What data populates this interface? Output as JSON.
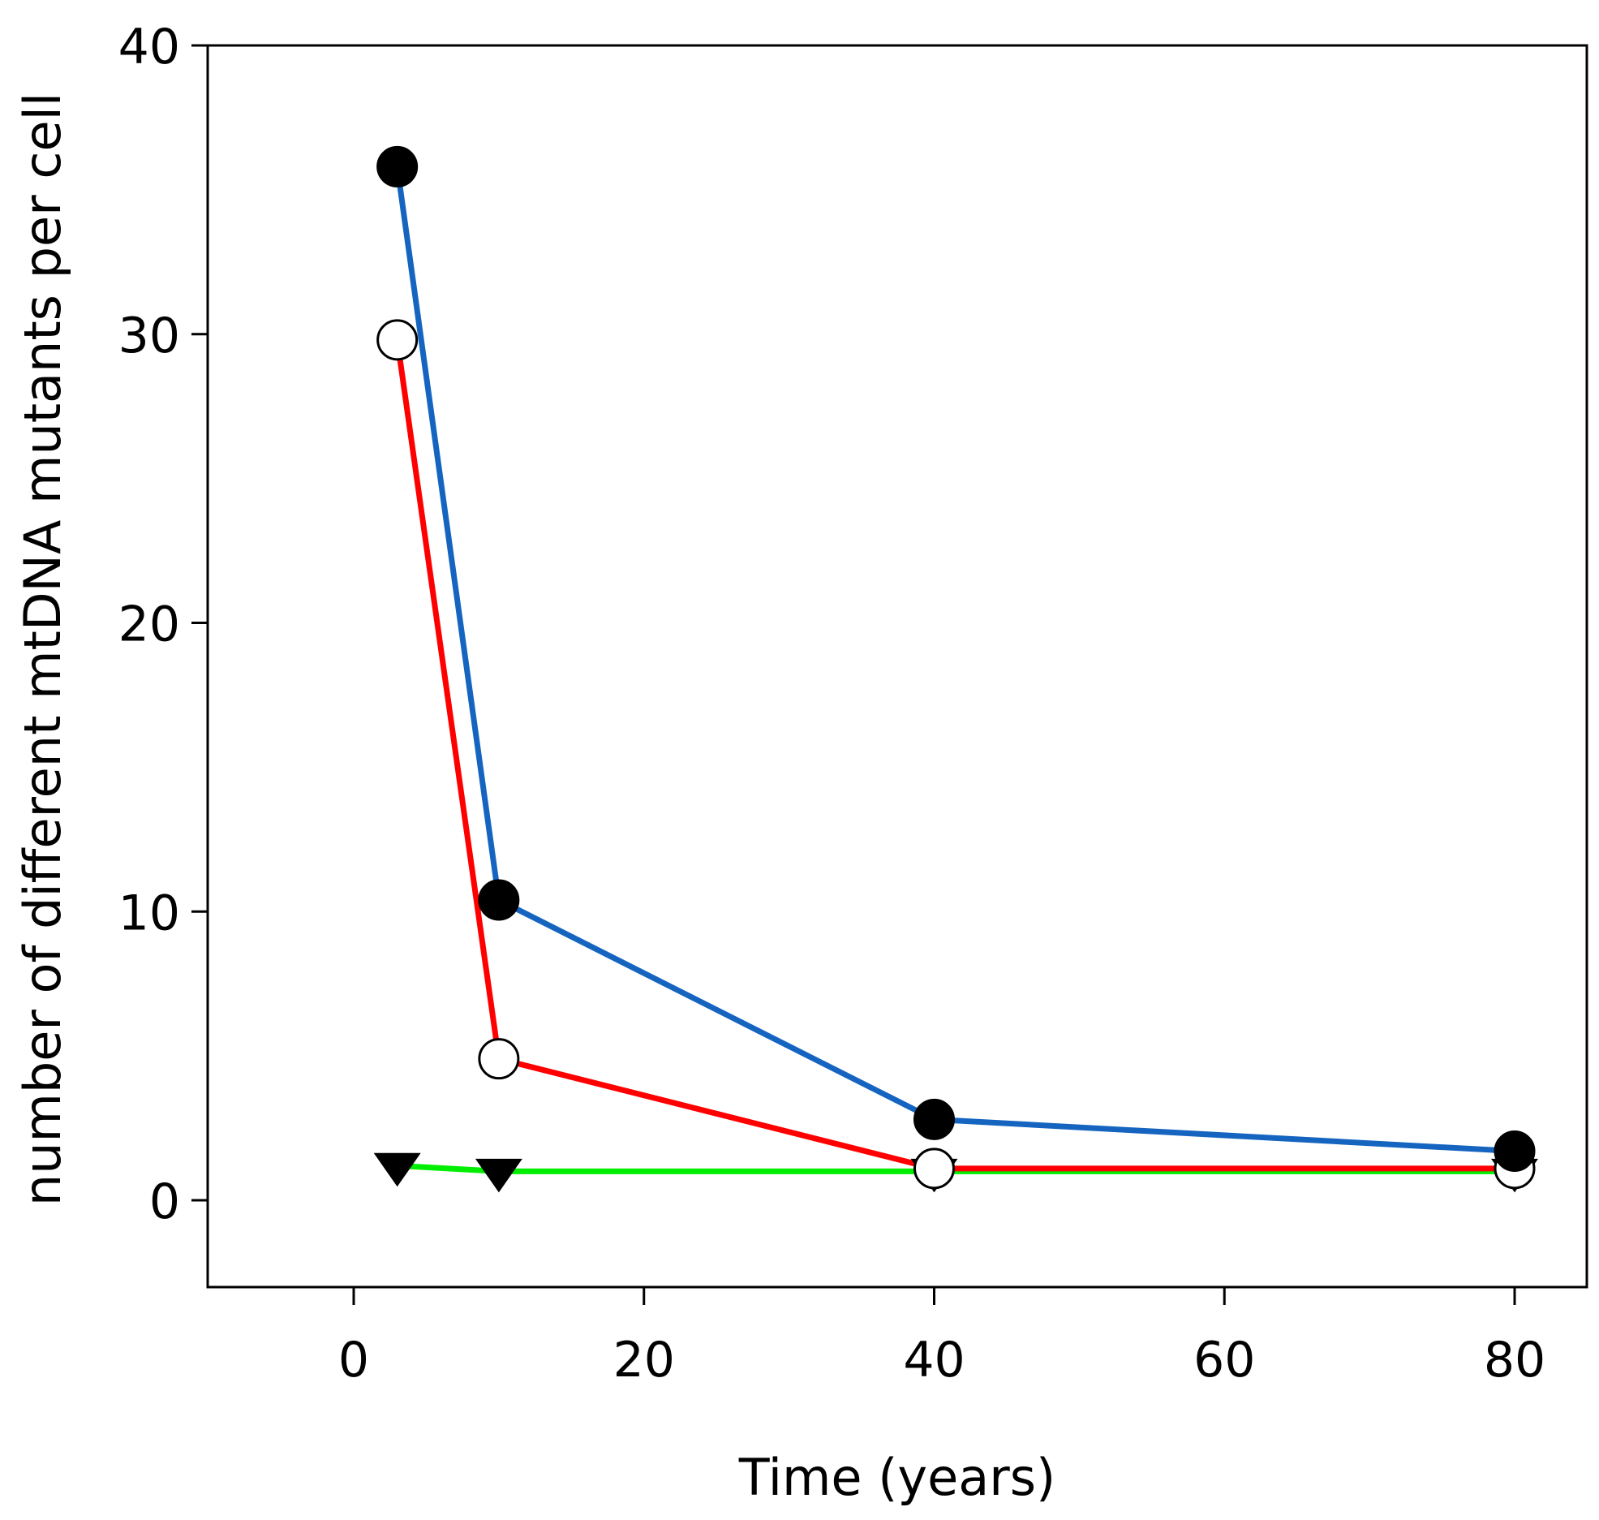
{
  "chart_data": {
    "type": "line",
    "title": "",
    "xlabel": "Time (years)",
    "ylabel": "number of different mtDNA mutants per cell",
    "xlim": [
      -10,
      85
    ],
    "ylim": [
      -3,
      40
    ],
    "xticks": [
      0,
      20,
      40,
      60,
      80
    ],
    "yticks": [
      0,
      10,
      20,
      30,
      40
    ],
    "xtick_labels": [
      "0",
      "20",
      "40",
      "60",
      "80"
    ],
    "ytick_labels": [
      "0",
      "10",
      "20",
      "30",
      "40"
    ],
    "grid": false,
    "legend": "none",
    "series": [
      {
        "name": "blue",
        "color": "#1565c0",
        "marker": "filled-circle",
        "x": [
          3,
          10,
          40,
          80
        ],
        "y": [
          35.8,
          10.4,
          2.8,
          1.7
        ]
      },
      {
        "name": "red",
        "color": "#ff0000",
        "marker": "open-circle",
        "x": [
          3,
          10,
          40,
          80
        ],
        "y": [
          29.8,
          4.9,
          1.1,
          1.1
        ]
      },
      {
        "name": "green",
        "color": "#00ee00",
        "marker": "filled-triangle-down",
        "x": [
          3,
          10,
          40,
          80
        ],
        "y": [
          1.2,
          1.0,
          1.0,
          1.0
        ]
      }
    ]
  }
}
